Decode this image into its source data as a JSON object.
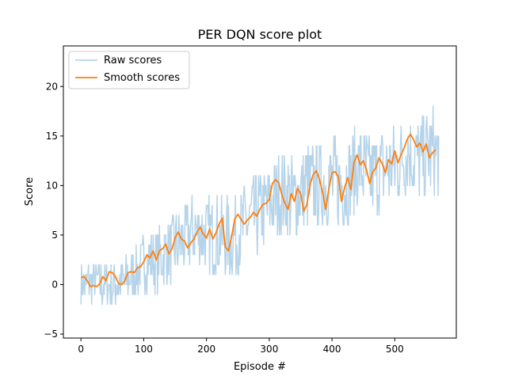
{
  "chart_data": {
    "type": "line",
    "title": "PER DQN score plot",
    "xlabel": "Episode #",
    "ylabel": "Score",
    "xlim": [
      -28,
      598
    ],
    "ylim": [
      -5.4,
      24.1
    ],
    "xticks": [
      0,
      100,
      200,
      300,
      400,
      500
    ],
    "yticks": [
      -5,
      0,
      5,
      10,
      15,
      20
    ],
    "grid": false,
    "legend_position": "upper left",
    "series": [
      {
        "name": "Raw scores",
        "color": "#b6d4e9",
        "style": "noisy",
        "anchors": [
          [
            0,
            0
          ],
          [
            20,
            0.5
          ],
          [
            40,
            0
          ],
          [
            60,
            0
          ],
          [
            80,
            0.8
          ],
          [
            100,
            2.2
          ],
          [
            120,
            2.5
          ],
          [
            140,
            3.5
          ],
          [
            160,
            4.2
          ],
          [
            180,
            5.5
          ],
          [
            200,
            5
          ],
          [
            220,
            5
          ],
          [
            240,
            4.5
          ],
          [
            260,
            6
          ],
          [
            280,
            7
          ],
          [
            300,
            8
          ],
          [
            320,
            9.5
          ],
          [
            340,
            8.5
          ],
          [
            360,
            10
          ],
          [
            380,
            10
          ],
          [
            400,
            10.5
          ],
          [
            420,
            10
          ],
          [
            440,
            12
          ],
          [
            460,
            11
          ],
          [
            480,
            11.5
          ],
          [
            500,
            12
          ],
          [
            520,
            13.5
          ],
          [
            540,
            12.5
          ],
          [
            560,
            13.5
          ],
          [
            570,
            13
          ]
        ],
        "amplitude": 3.5
      },
      {
        "name": "Smooth scores",
        "color": "#ff7f0e",
        "x": [
          0,
          5,
          10,
          15,
          20,
          25,
          30,
          35,
          40,
          45,
          50,
          55,
          60,
          65,
          70,
          75,
          80,
          85,
          90,
          95,
          100,
          105,
          110,
          115,
          120,
          125,
          130,
          135,
          140,
          145,
          150,
          155,
          160,
          165,
          170,
          175,
          180,
          185,
          190,
          195,
          200,
          205,
          210,
          215,
          220,
          225,
          230,
          235,
          240,
          245,
          250,
          255,
          260,
          265,
          270,
          275,
          280,
          285,
          290,
          295,
          300,
          305,
          310,
          315,
          320,
          325,
          330,
          335,
          340,
          345,
          350,
          355,
          360,
          365,
          370,
          375,
          380,
          385,
          390,
          395,
          400,
          405,
          410,
          415,
          420,
          425,
          430,
          435,
          440,
          445,
          450,
          455,
          460,
          465,
          470,
          475,
          480,
          485,
          490,
          495,
          500,
          505,
          510,
          515,
          520,
          525,
          530,
          535,
          540,
          545,
          550,
          555,
          560,
          565
        ],
        "values": [
          0.7,
          0.8,
          0.4,
          -0.2,
          -0.1,
          -0.2,
          0.1,
          0.8,
          0.4,
          1.3,
          1.2,
          0.8,
          0.1,
          0,
          0.4,
          1.2,
          1.3,
          1.2,
          1.7,
          1.8,
          2.3,
          3,
          2.7,
          3.4,
          2.5,
          3.4,
          3.6,
          4.1,
          3.1,
          3.6,
          4.7,
          5.3,
          4.6,
          4.4,
          3.7,
          4.2,
          4.6,
          5.3,
          5.8,
          5.1,
          4.7,
          5.6,
          4.6,
          5.2,
          6.1,
          6.7,
          3.8,
          3.4,
          4.8,
          6.6,
          7.1,
          6.6,
          6.1,
          6.5,
          6.8,
          7.3,
          6.9,
          7.6,
          8.1,
          8.2,
          8.6,
          10.2,
          10.6,
          10.3,
          9.1,
          8.2,
          7.6,
          9.2,
          8.4,
          9.7,
          9.2,
          7.4,
          8.1,
          10.1,
          11.1,
          11.5,
          10.6,
          9.3,
          7.6,
          9.7,
          11.3,
          11.4,
          10.9,
          8.4,
          9.8,
          10.8,
          9.6,
          12.3,
          13.1,
          12.1,
          12.5,
          11.6,
          10.2,
          11.4,
          11.8,
          12.8,
          12.2,
          11.3,
          12.6,
          12.2,
          13.5,
          12.3,
          13.1,
          13.8,
          14.7,
          15.2,
          14.6,
          13.9,
          14.3,
          13.4,
          14.2,
          12.8,
          13.3,
          13.6
        ]
      }
    ]
  }
}
